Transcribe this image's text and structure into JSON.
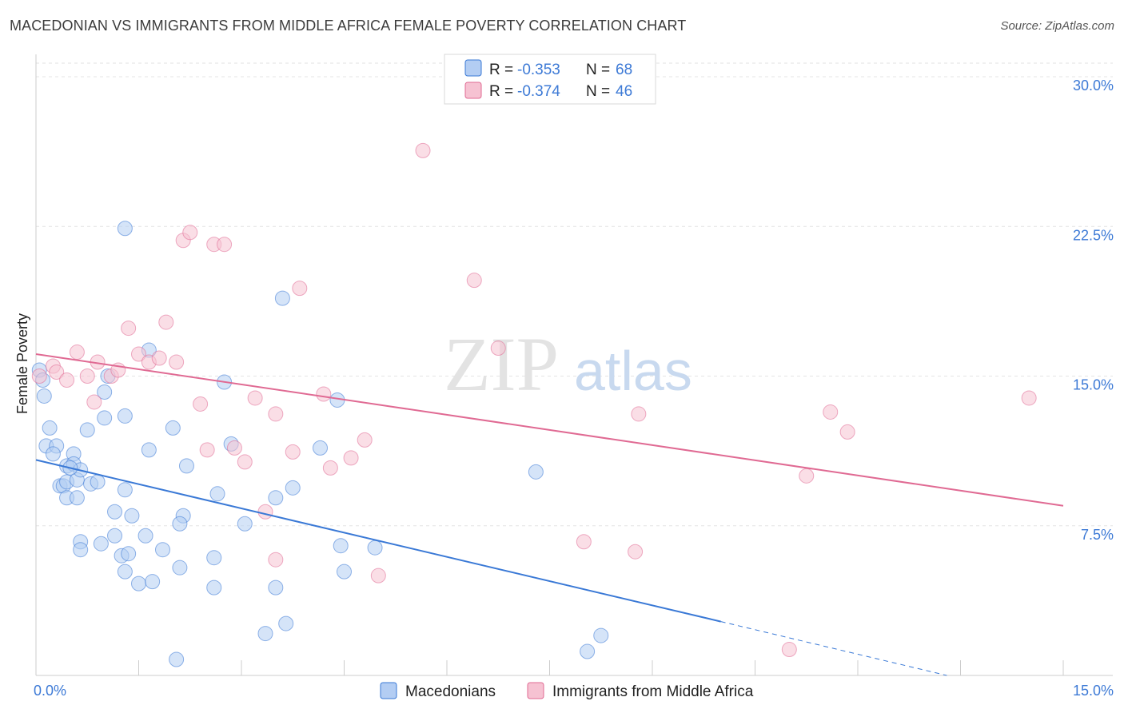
{
  "title": "MACEDONIAN VS IMMIGRANTS FROM MIDDLE AFRICA FEMALE POVERTY CORRELATION CHART",
  "source": "Source: ZipAtlas.com",
  "watermark": {
    "part1": "ZIP",
    "part2": "atlas"
  },
  "colors": {
    "blue": "#3a79d6",
    "blue_fill": "#b3cdf3",
    "pink": "#e06a93",
    "pink_fill": "#f6c2d2",
    "grid": "#dddddd",
    "tick_label": "#3d7ad6"
  },
  "legend": {
    "rows": [
      {
        "r_label": "R = ",
        "r_value": "-0.353",
        "n_label": "N = ",
        "n_value": "68"
      },
      {
        "r_label": "R = ",
        "r_value": "-0.374",
        "n_label": "N = ",
        "n_value": "46"
      }
    ]
  },
  "chart_data": {
    "type": "scatter",
    "title": "MACEDONIAN VS IMMIGRANTS FROM MIDDLE AFRICA FEMALE POVERTY CORRELATION CHART",
    "xlabel": "",
    "ylabel": "Female Poverty",
    "xlim": [
      0,
      15
    ],
    "ylim": [
      0,
      30
    ],
    "x_tick_labels": [
      "0.0%",
      "15.0%"
    ],
    "y_ticks": [
      7.5,
      15.0,
      22.5,
      30.0
    ],
    "y_tick_labels": [
      "7.5%",
      "15.0%",
      "22.5%",
      "30.0%"
    ],
    "grid": "horizontal dashed",
    "legend_position": "top-center",
    "series": [
      {
        "name": "Macedonians",
        "color": "#3a79d6",
        "trend": {
          "x0": 0.0,
          "y0": 10.8,
          "x1": 10.0,
          "y1": 2.7,
          "dashed_to_x": 13.3,
          "dashed_to_y": 0.0
        },
        "points": [
          [
            0.05,
            15.3
          ],
          [
            0.1,
            14.8
          ],
          [
            0.12,
            14.0
          ],
          [
            0.2,
            12.4
          ],
          [
            0.15,
            11.5
          ],
          [
            0.3,
            11.5
          ],
          [
            0.25,
            11.1
          ],
          [
            0.55,
            11.1
          ],
          [
            0.45,
            10.5
          ],
          [
            0.55,
            10.6
          ],
          [
            0.35,
            9.5
          ],
          [
            0.4,
            9.5
          ],
          [
            0.45,
            9.7
          ],
          [
            0.6,
            9.8
          ],
          [
            0.8,
            9.6
          ],
          [
            0.45,
            8.9
          ],
          [
            0.6,
            8.9
          ],
          [
            0.65,
            10.3
          ],
          [
            0.75,
            12.3
          ],
          [
            1.0,
            12.9
          ],
          [
            1.0,
            14.2
          ],
          [
            1.05,
            15.0
          ],
          [
            1.3,
            13.0
          ],
          [
            1.15,
            8.2
          ],
          [
            1.4,
            8.0
          ],
          [
            1.3,
            9.3
          ],
          [
            1.65,
            11.3
          ],
          [
            1.65,
            16.3
          ],
          [
            1.3,
            22.4
          ],
          [
            2.0,
            12.4
          ],
          [
            2.2,
            10.5
          ],
          [
            2.15,
            8.0
          ],
          [
            2.1,
            7.6
          ],
          [
            1.6,
            7.0
          ],
          [
            1.15,
            7.0
          ],
          [
            0.65,
            6.7
          ],
          [
            0.65,
            6.3
          ],
          [
            0.95,
            6.6
          ],
          [
            1.25,
            6.0
          ],
          [
            1.35,
            6.1
          ],
          [
            1.85,
            6.3
          ],
          [
            1.3,
            5.2
          ],
          [
            1.5,
            4.6
          ],
          [
            1.7,
            4.7
          ],
          [
            2.1,
            5.4
          ],
          [
            2.6,
            5.9
          ],
          [
            2.65,
            9.1
          ],
          [
            2.85,
            11.6
          ],
          [
            2.75,
            14.7
          ],
          [
            3.05,
            7.6
          ],
          [
            3.5,
            8.9
          ],
          [
            3.75,
            9.4
          ],
          [
            4.15,
            11.4
          ],
          [
            4.4,
            13.8
          ],
          [
            3.6,
            18.9
          ],
          [
            4.45,
            6.5
          ],
          [
            4.95,
            6.4
          ],
          [
            4.5,
            5.2
          ],
          [
            2.6,
            4.4
          ],
          [
            3.5,
            4.4
          ],
          [
            3.65,
            2.6
          ],
          [
            3.35,
            2.1
          ],
          [
            2.05,
            0.8
          ],
          [
            7.3,
            10.2
          ],
          [
            8.25,
            2.0
          ],
          [
            8.05,
            1.2
          ],
          [
            0.5,
            10.4
          ],
          [
            0.9,
            9.7
          ]
        ]
      },
      {
        "name": "Immigrants from Middle Africa",
        "color": "#e06a93",
        "trend": {
          "x0": 0.0,
          "y0": 16.1,
          "x1": 15.0,
          "y1": 8.5
        },
        "points": [
          [
            0.05,
            15.0
          ],
          [
            0.25,
            15.5
          ],
          [
            0.3,
            15.2
          ],
          [
            0.45,
            14.8
          ],
          [
            0.6,
            16.2
          ],
          [
            0.75,
            15.0
          ],
          [
            0.9,
            15.7
          ],
          [
            1.1,
            15.0
          ],
          [
            0.85,
            13.7
          ],
          [
            1.2,
            15.3
          ],
          [
            1.35,
            17.4
          ],
          [
            1.5,
            16.1
          ],
          [
            1.65,
            15.7
          ],
          [
            1.8,
            15.9
          ],
          [
            1.9,
            17.7
          ],
          [
            2.05,
            15.7
          ],
          [
            2.15,
            21.8
          ],
          [
            2.25,
            22.2
          ],
          [
            2.6,
            21.6
          ],
          [
            2.75,
            21.6
          ],
          [
            2.4,
            13.6
          ],
          [
            2.5,
            11.3
          ],
          [
            2.9,
            11.4
          ],
          [
            3.05,
            10.7
          ],
          [
            3.2,
            13.9
          ],
          [
            3.5,
            13.1
          ],
          [
            3.75,
            11.2
          ],
          [
            3.85,
            19.4
          ],
          [
            4.2,
            14.1
          ],
          [
            4.3,
            10.4
          ],
          [
            4.6,
            10.9
          ],
          [
            4.8,
            11.8
          ],
          [
            5.0,
            5.0
          ],
          [
            5.65,
            26.3
          ],
          [
            3.5,
            5.8
          ],
          [
            3.35,
            8.2
          ],
          [
            6.4,
            19.8
          ],
          [
            6.75,
            16.4
          ],
          [
            8.0,
            6.7
          ],
          [
            8.8,
            13.1
          ],
          [
            8.75,
            6.2
          ],
          [
            11.25,
            10.0
          ],
          [
            11.6,
            13.2
          ],
          [
            11.85,
            12.2
          ],
          [
            14.5,
            13.9
          ],
          [
            11.0,
            1.3
          ]
        ]
      }
    ]
  }
}
